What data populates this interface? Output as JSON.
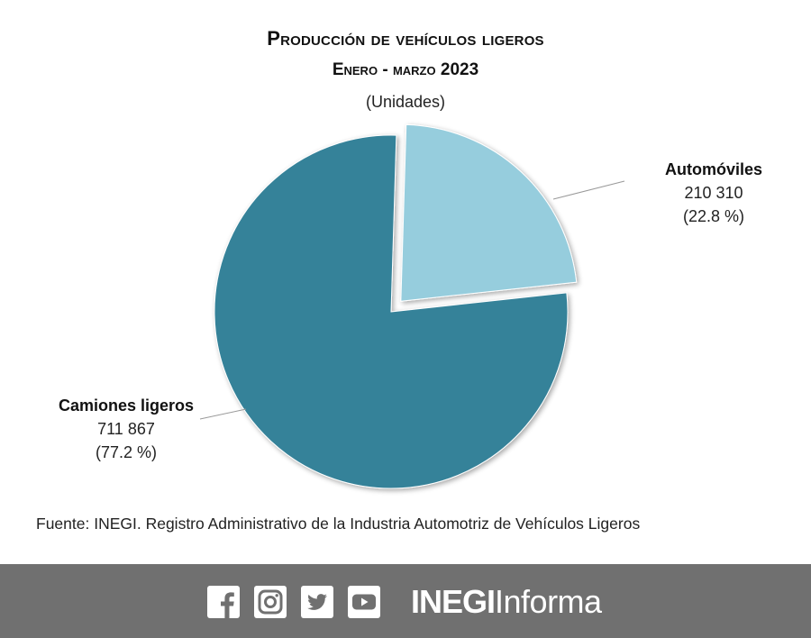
{
  "chart_data": {
    "type": "pie",
    "title": "Producción de vehículos ligeros",
    "subtitle": "Enero - marzo 2023",
    "units": "(Unidades)",
    "slices": [
      {
        "name": "Camiones ligeros",
        "value": 711867,
        "value_label": "711 867",
        "pct_label": "(77.2 %)",
        "color": "#358299",
        "exploded": false
      },
      {
        "name": "Automóviles",
        "value": 210310,
        "value_label": "210 310",
        "pct_label": "(22.8 %)",
        "color": "#96cddd",
        "exploded": true
      }
    ]
  },
  "source": "Fuente: INEGI. Registro Administrativo de la Industria Automotriz de Vehículos Ligeros",
  "footer": {
    "social_icons": [
      "facebook-icon",
      "instagram-icon",
      "twitter-icon",
      "youtube-icon"
    ],
    "brand_bold": "INEGI",
    "brand_light": "Informa",
    "background_color": "#707070"
  }
}
